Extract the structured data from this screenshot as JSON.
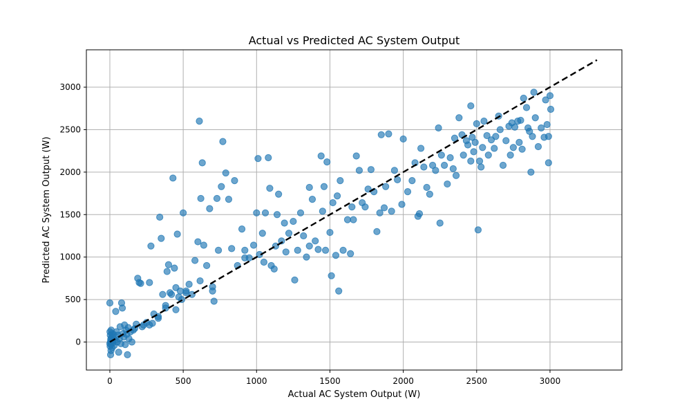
{
  "chart_data": {
    "type": "scatter",
    "title": "Actual vs Predicted AC System Output",
    "xlabel": "Actual AC System Output (W)",
    "ylabel": "Predicted AC System Output (W)",
    "xlim": [
      -160,
      3490
    ],
    "ylim": [
      -330,
      3440
    ],
    "x_ticks": [
      0,
      500,
      1000,
      1500,
      2000,
      2500,
      3000
    ],
    "y_ticks": [
      0,
      500,
      1000,
      1500,
      2000,
      2500,
      3000
    ],
    "grid": true,
    "point_color": "#1f77b4",
    "point_alpha": 0.65,
    "reference_line": {
      "from": [
        0,
        0
      ],
      "to": [
        3320,
        3320
      ],
      "style": "dashed",
      "color": "#000000"
    },
    "series": [
      {
        "points": [
          [
            0,
            460
          ],
          [
            5,
            -150
          ],
          [
            8,
            -100
          ],
          [
            2,
            -50
          ],
          [
            4,
            0
          ],
          [
            6,
            30
          ],
          [
            3,
            80
          ],
          [
            1,
            120
          ],
          [
            7,
            -30
          ],
          [
            10,
            50
          ],
          [
            12,
            10
          ],
          [
            15,
            -70
          ],
          [
            0,
            -20
          ],
          [
            9,
            140
          ],
          [
            14,
            100
          ],
          [
            18,
            60
          ],
          [
            20,
            -10
          ],
          [
            22,
            20
          ],
          [
            25,
            90
          ],
          [
            30,
            -40
          ],
          [
            35,
            20
          ],
          [
            40,
            360
          ],
          [
            45,
            120
          ],
          [
            50,
            0
          ],
          [
            55,
            80
          ],
          [
            60,
            -120
          ],
          [
            65,
            40
          ],
          [
            70,
            180
          ],
          [
            75,
            -20
          ],
          [
            80,
            460
          ],
          [
            85,
            400
          ],
          [
            90,
            100
          ],
          [
            95,
            60
          ],
          [
            100,
            200
          ],
          [
            105,
            -30
          ],
          [
            110,
            140
          ],
          [
            115,
            90
          ],
          [
            120,
            -150
          ],
          [
            125,
            170
          ],
          [
            130,
            40
          ],
          [
            140,
            120
          ],
          [
            150,
            0
          ],
          [
            160,
            140
          ],
          [
            170,
            160
          ],
          [
            180,
            210
          ],
          [
            190,
            750
          ],
          [
            200,
            700
          ],
          [
            210,
            690
          ],
          [
            230,
            200
          ],
          [
            250,
            230
          ],
          [
            270,
            700
          ],
          [
            280,
            1130
          ],
          [
            290,
            220
          ],
          [
            300,
            330
          ],
          [
            330,
            280
          ],
          [
            340,
            1470
          ],
          [
            350,
            1220
          ],
          [
            360,
            560
          ],
          [
            380,
            430
          ],
          [
            390,
            830
          ],
          [
            400,
            910
          ],
          [
            410,
            580
          ],
          [
            420,
            560
          ],
          [
            430,
            1930
          ],
          [
            440,
            870
          ],
          [
            450,
            640
          ],
          [
            460,
            1270
          ],
          [
            470,
            530
          ],
          [
            480,
            600
          ],
          [
            490,
            500
          ],
          [
            500,
            1520
          ],
          [
            520,
            600
          ],
          [
            540,
            680
          ],
          [
            560,
            560
          ],
          [
            580,
            960
          ],
          [
            600,
            1180
          ],
          [
            610,
            2600
          ],
          [
            615,
            720
          ],
          [
            620,
            1690
          ],
          [
            630,
            2110
          ],
          [
            640,
            1140
          ],
          [
            660,
            900
          ],
          [
            680,
            1570
          ],
          [
            700,
            600
          ],
          [
            710,
            480
          ],
          [
            730,
            1690
          ],
          [
            740,
            1080
          ],
          [
            760,
            1830
          ],
          [
            770,
            2360
          ],
          [
            790,
            1990
          ],
          [
            810,
            1680
          ],
          [
            830,
            1100
          ],
          [
            850,
            1900
          ],
          [
            870,
            900
          ],
          [
            900,
            1330
          ],
          [
            920,
            1080
          ],
          [
            950,
            990
          ],
          [
            980,
            1140
          ],
          [
            1000,
            1520
          ],
          [
            1010,
            2160
          ],
          [
            1020,
            1030
          ],
          [
            1040,
            1280
          ],
          [
            1060,
            1520
          ],
          [
            1080,
            2170
          ],
          [
            1090,
            1810
          ],
          [
            1100,
            900
          ],
          [
            1120,
            860
          ],
          [
            1140,
            1500
          ],
          [
            1150,
            1740
          ],
          [
            1170,
            1190
          ],
          [
            1190,
            1400
          ],
          [
            1200,
            1060
          ],
          [
            1220,
            1280
          ],
          [
            1250,
            1420
          ],
          [
            1260,
            730
          ],
          [
            1280,
            1080
          ],
          [
            1300,
            1520
          ],
          [
            1320,
            1250
          ],
          [
            1340,
            1000
          ],
          [
            1360,
            1820
          ],
          [
            1380,
            1680
          ],
          [
            1400,
            1190
          ],
          [
            1420,
            1090
          ],
          [
            1440,
            2190
          ],
          [
            1450,
            1540
          ],
          [
            1460,
            1830
          ],
          [
            1480,
            2120
          ],
          [
            1500,
            1290
          ],
          [
            1510,
            780
          ],
          [
            1520,
            1640
          ],
          [
            1540,
            1020
          ],
          [
            1550,
            1720
          ],
          [
            1560,
            600
          ],
          [
            1570,
            1900
          ],
          [
            1590,
            1080
          ],
          [
            1620,
            1440
          ],
          [
            1640,
            1040
          ],
          [
            1660,
            1440
          ],
          [
            1680,
            2190
          ],
          [
            1700,
            2020
          ],
          [
            1720,
            1640
          ],
          [
            1740,
            1590
          ],
          [
            1760,
            1800
          ],
          [
            1780,
            2030
          ],
          [
            1800,
            1770
          ],
          [
            1820,
            1300
          ],
          [
            1840,
            1520
          ],
          [
            1850,
            2440
          ],
          [
            1870,
            1580
          ],
          [
            1880,
            1830
          ],
          [
            1900,
            2450
          ],
          [
            1920,
            1540
          ],
          [
            1940,
            2020
          ],
          [
            1960,
            1910
          ],
          [
            1990,
            1620
          ],
          [
            2000,
            2390
          ],
          [
            2030,
            1770
          ],
          [
            2060,
            1900
          ],
          [
            2080,
            2110
          ],
          [
            2100,
            1480
          ],
          [
            2110,
            1510
          ],
          [
            2120,
            2280
          ],
          [
            2140,
            2060
          ],
          [
            2160,
            1820
          ],
          [
            2180,
            1740
          ],
          [
            2200,
            2080
          ],
          [
            2220,
            2020
          ],
          [
            2240,
            2520
          ],
          [
            2250,
            1400
          ],
          [
            2260,
            2200
          ],
          [
            2280,
            2080
          ],
          [
            2300,
            1860
          ],
          [
            2320,
            2170
          ],
          [
            2340,
            2040
          ],
          [
            2350,
            2400
          ],
          [
            2360,
            1960
          ],
          [
            2380,
            2640
          ],
          [
            2400,
            2440
          ],
          [
            2410,
            2200
          ],
          [
            2430,
            2370
          ],
          [
            2440,
            2320
          ],
          [
            2460,
            2780
          ],
          [
            2470,
            2410
          ],
          [
            2480,
            2240
          ],
          [
            2490,
            2350
          ],
          [
            2500,
            2570
          ],
          [
            2510,
            1320
          ],
          [
            2520,
            2130
          ],
          [
            2530,
            2060
          ],
          [
            2540,
            2290
          ],
          [
            2550,
            2600
          ],
          [
            2570,
            2430
          ],
          [
            2580,
            2200
          ],
          [
            2600,
            2380
          ],
          [
            2620,
            2280
          ],
          [
            2630,
            2420
          ],
          [
            2650,
            2660
          ],
          [
            2660,
            2500
          ],
          [
            2680,
            2080
          ],
          [
            2700,
            2370
          ],
          [
            2720,
            2540
          ],
          [
            2730,
            2200
          ],
          [
            2740,
            2580
          ],
          [
            2750,
            2290
          ],
          [
            2760,
            2530
          ],
          [
            2780,
            2600
          ],
          [
            2790,
            2350
          ],
          [
            2800,
            2610
          ],
          [
            2810,
            2270
          ],
          [
            2820,
            2870
          ],
          [
            2840,
            2760
          ],
          [
            2850,
            2520
          ],
          [
            2860,
            2480
          ],
          [
            2870,
            2000
          ],
          [
            2880,
            2420
          ],
          [
            2890,
            2940
          ],
          [
            2900,
            2640
          ],
          [
            2920,
            2300
          ],
          [
            2940,
            2520
          ],
          [
            2960,
            2410
          ],
          [
            2970,
            2850
          ],
          [
            2980,
            2560
          ],
          [
            2990,
            2110
          ],
          [
            3000,
            2900
          ],
          [
            3005,
            2740
          ],
          [
            2990,
            2420
          ],
          [
            2460,
            2130
          ],
          [
            1650,
            1590
          ],
          [
            1470,
            1080
          ],
          [
            1360,
            1130
          ],
          [
            1130,
            1130
          ],
          [
            1050,
            940
          ],
          [
            920,
            990
          ],
          [
            700,
            650
          ],
          [
            520,
            580
          ],
          [
            450,
            380
          ],
          [
            380,
            400
          ],
          [
            330,
            300
          ],
          [
            270,
            200
          ],
          [
            220,
            180
          ]
        ]
      }
    ]
  }
}
